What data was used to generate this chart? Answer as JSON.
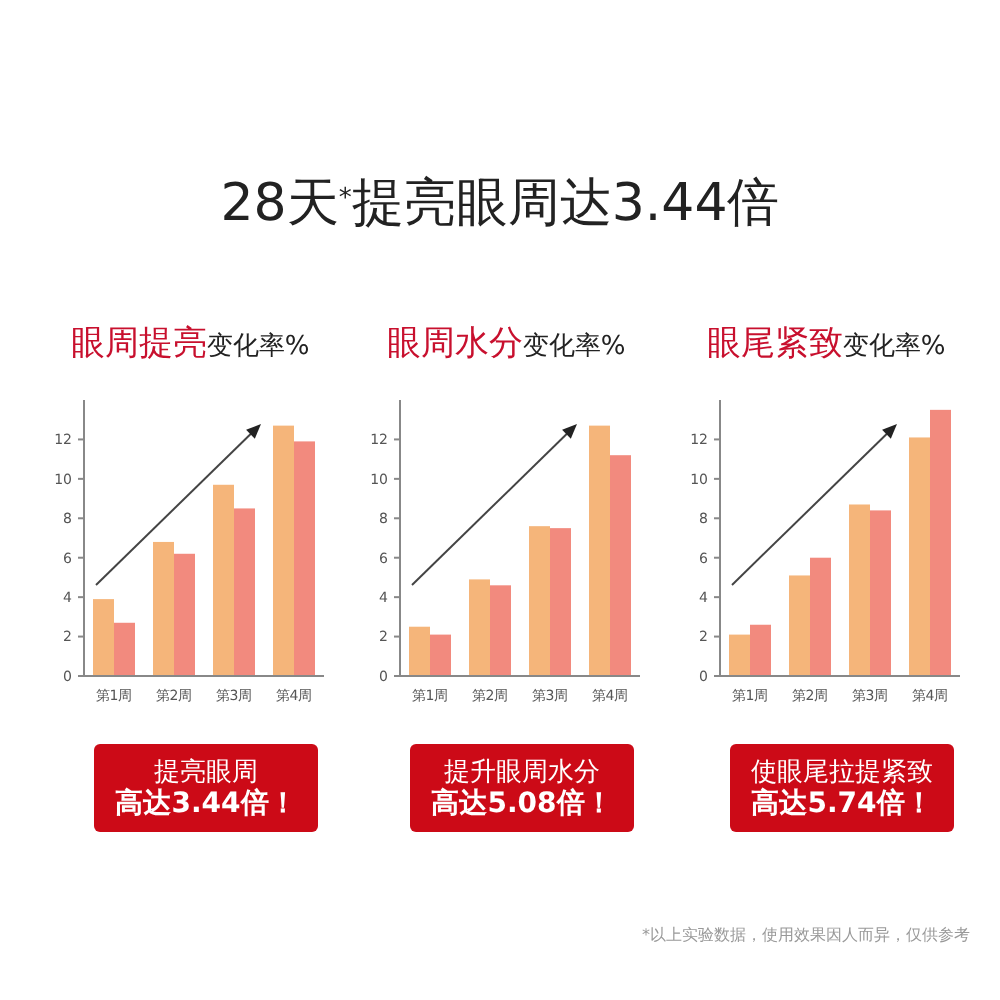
{
  "chart_data": [
    {
      "type": "other",
      "title": "28天$^{*}$提亮眼周达3.44倍",
      "annotations": [
        "*以上实验数据，使用效果因人而异，仅供参考"
      ]
    },
    {
      "type": "bar",
      "title": "眼周提亮变化率%",
      "categories": [
        "第1周",
        "第2周",
        "第3周",
        "第4周"
      ],
      "ylim": [
        0,
        14
      ],
      "yticks": [
        0,
        2,
        4,
        6,
        8,
        10,
        12
      ],
      "grid": false,
      "annotations": [
        "提亮眼周",
        "高达3.44倍！"
      ],
      "series": [
        {
          "color": "#f5b57a",
          "values": [
            3.9,
            6.8,
            9.7,
            12.7
          ]
        },
        {
          "color": "#f28a7e",
          "values": [
            2.7,
            6.2,
            8.5,
            11.9
          ]
        }
      ]
    },
    {
      "type": "bar",
      "title": "眼周水分变化率%",
      "categories": [
        "第1周",
        "第2周",
        "第3周",
        "第4周"
      ],
      "ylim": [
        0,
        14
      ],
      "yticks": [
        0,
        2,
        4,
        6,
        8,
        10,
        12
      ],
      "grid": false,
      "annotations": [
        "提升眼周水分",
        "高达5.08倍！"
      ],
      "series": [
        {
          "color": "#f5b57a",
          "values": [
            2.5,
            4.9,
            7.6,
            12.7
          ]
        },
        {
          "color": "#f28a7e",
          "values": [
            2.1,
            4.6,
            7.5,
            11.2
          ]
        }
      ]
    },
    {
      "type": "bar",
      "title": "眼尾紧致变化率%",
      "categories": [
        "第1周",
        "第2周",
        "第3周",
        "第4周"
      ],
      "ylim": [
        0,
        14
      ],
      "yticks": [
        0,
        2,
        4,
        6,
        8,
        10,
        12
      ],
      "grid": false,
      "annotations": [
        "使眼尾拉提紧致",
        "高达5.74倍！"
      ],
      "series": [
        {
          "color": "#f5b57a",
          "values": [
            2.1,
            5.1,
            8.7,
            12.1
          ]
        },
        {
          "color": "#f28a7e",
          "values": [
            2.6,
            6.0,
            8.4,
            13.5
          ]
        }
      ]
    }
  ]
}
